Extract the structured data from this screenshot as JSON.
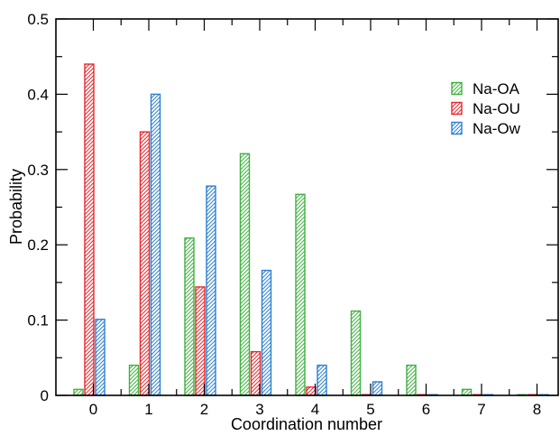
{
  "chart_data": {
    "type": "bar",
    "title": "",
    "xlabel": "Coordination number",
    "ylabel": "Probability",
    "categories": [
      "0",
      "1",
      "2",
      "3",
      "4",
      "5",
      "6",
      "7",
      "8"
    ],
    "ylim": [
      0,
      0.5
    ],
    "yticks": [
      "0",
      "0.1",
      "0.2",
      "0.3",
      "0.4",
      "0.5"
    ],
    "grid": false,
    "legend_position": "top-right",
    "series": [
      {
        "name": "Na-OA",
        "color": "#3fb13f",
        "values": [
          0.008,
          0.04,
          0.209,
          0.321,
          0.267,
          0.112,
          0.04,
          0.008,
          0.0
        ]
      },
      {
        "name": "Na-OU",
        "color": "#e8262b",
        "values": [
          0.44,
          0.35,
          0.144,
          0.058,
          0.011,
          0.0,
          0.0,
          0.0,
          0.0
        ]
      },
      {
        "name": "Na-Ow",
        "color": "#2b7fd0",
        "values": [
          0.101,
          0.4,
          0.278,
          0.166,
          0.04,
          0.018,
          0.0,
          0.0,
          0.0
        ]
      }
    ]
  }
}
